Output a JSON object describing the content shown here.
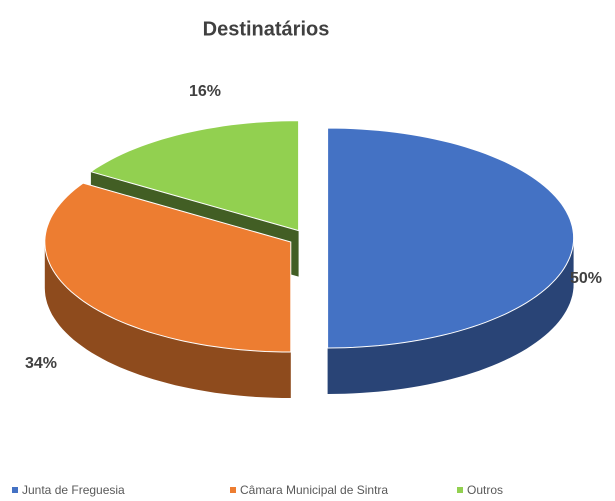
{
  "chart_data": {
    "type": "pie",
    "title": "Destinatários",
    "categories": [
      "Junta de Freguesia",
      "Câmara Municipal de Sintra",
      "Outros"
    ],
    "values": [
      50,
      34,
      16
    ],
    "value_labels": [
      "50%",
      "34%",
      "16%"
    ],
    "colors": [
      "#4472c4",
      "#ed7d31",
      "#92d050"
    ],
    "legend": "bottom"
  }
}
